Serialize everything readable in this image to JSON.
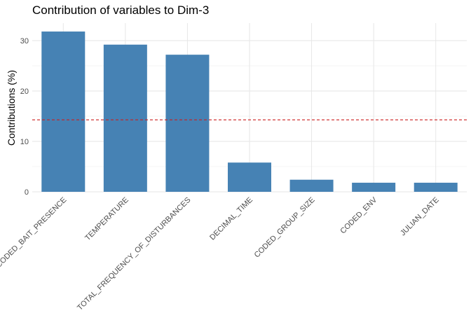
{
  "chart_data": {
    "type": "bar",
    "title": "Contribution of variables to Dim-3",
    "xlabel": "",
    "ylabel": "Contributions (%)",
    "categories": [
      "CODED_BAIT_PRESENCE",
      "TEMPERATURE",
      "TOTAL_FREQUENCY_OF_DISTURBANCES",
      "DECIMAL_TIME",
      "CODED_GROUP_SIZE",
      "CODED_ENV",
      "JULIAN_DATE"
    ],
    "values": [
      31.8,
      29.2,
      27.2,
      5.8,
      2.4,
      1.8,
      1.8
    ],
    "ylim": [
      0,
      33.5
    ],
    "yticks": [
      0,
      10,
      20,
      30
    ],
    "reference_line": {
      "value": 14.2857,
      "style": "dashed",
      "color": "#cc1f1f"
    },
    "bar_color": "#4682b4",
    "grid": true,
    "legend": "none"
  }
}
